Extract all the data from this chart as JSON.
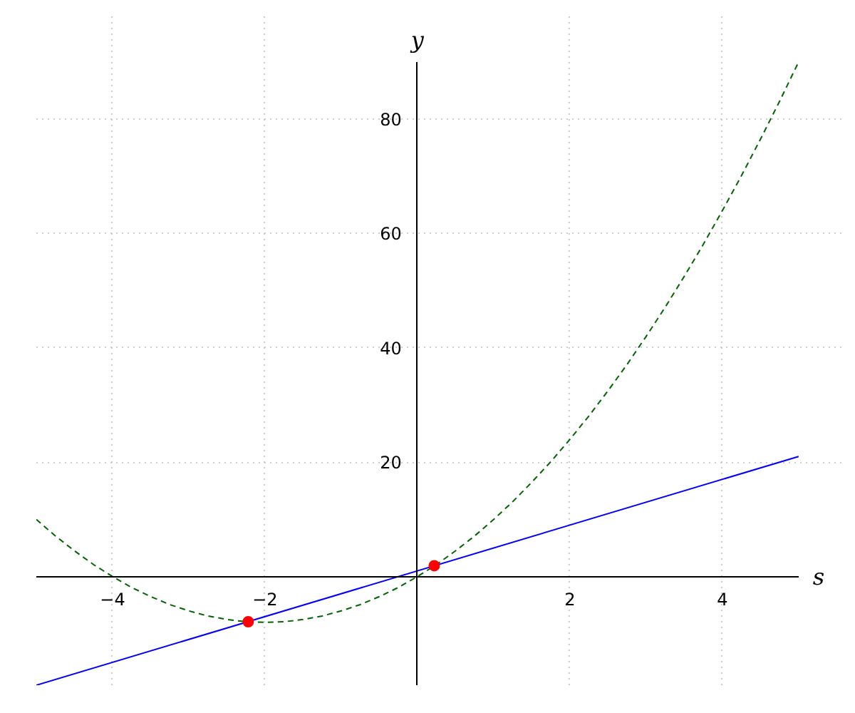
{
  "chart_data": {
    "type": "line",
    "xlabel": "s",
    "ylabel": "y",
    "xlim": [
      -5,
      5
    ],
    "ylim": [
      -19,
      90
    ],
    "xticks": [
      -4,
      -2,
      2,
      4
    ],
    "yticks": [
      20,
      40,
      60,
      80
    ],
    "grid": true,
    "series": [
      {
        "color": "#0000ff",
        "line_style": "solid",
        "x": [
          -5,
          5
        ],
        "values": [
          -19,
          21
        ]
      },
      {
        "color": "#006400",
        "line_style": "dashed",
        "x": [
          -5,
          -4.75,
          -4.5,
          -4.25,
          -4,
          -3.75,
          -3.5,
          -3.25,
          -3,
          -2.75,
          -2.5,
          -2.25,
          -2,
          -1.75,
          -1.5,
          -1.25,
          -1,
          -0.75,
          -0.5,
          -0.25,
          0,
          0.25,
          0.5,
          0.75,
          1,
          1.25,
          1.5,
          1.75,
          2,
          2.25,
          2.5,
          2.75,
          3,
          3.25,
          3.5,
          3.75,
          4,
          4.25,
          4.5,
          4.75,
          5
        ],
        "values": [
          10,
          7.1,
          4.5,
          2.1,
          0,
          -1.9,
          -3.5,
          -4.9,
          -6,
          -6.9,
          -7.5,
          -7.9,
          -8,
          -7.9,
          -7.5,
          -6.9,
          -6,
          -4.9,
          -3.5,
          -1.9,
          0,
          2.1,
          4.5,
          7.1,
          10,
          13.1,
          16.5,
          20.1,
          24,
          28.1,
          32.5,
          37.1,
          42,
          47.1,
          52.5,
          58.1,
          64,
          70.1,
          76.5,
          83.1,
          90
        ]
      },
      {
        "type": "scatter",
        "color": "#ff0000",
        "marker": "circle",
        "x": [
          -2.22,
          0.22
        ],
        "values": [
          -7.9,
          1.9
        ]
      }
    ]
  }
}
